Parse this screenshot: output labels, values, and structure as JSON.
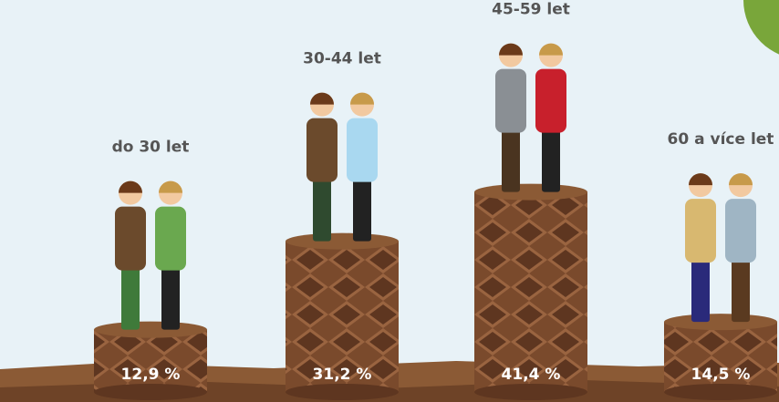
{
  "chart_data": {
    "type": "bar",
    "categories": [
      "do 30 let",
      "30-44 let",
      "45-59 let",
      "60 a více let"
    ],
    "values": [
      12.9,
      31.2,
      41.4,
      14.5
    ],
    "value_labels": [
      "12,9 %",
      "31,2 %",
      "41,4 %",
      "14,5 %"
    ],
    "color": "#7a4a2c"
  }
}
